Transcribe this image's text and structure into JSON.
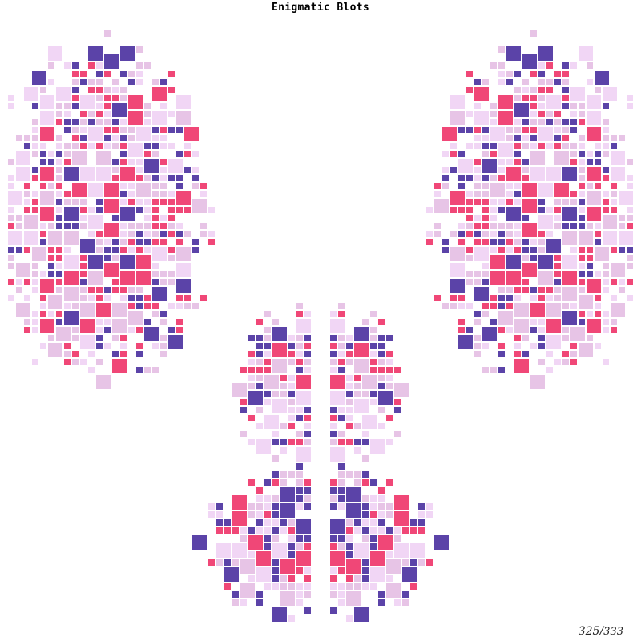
{
  "title": "Enigmatic Blots",
  "edition": {
    "number": "325",
    "total": "333"
  },
  "palette": [
    "#5b43a8",
    "#f04777",
    "#e7c4e6",
    "#f1d6f5"
  ],
  "seed": 325
}
